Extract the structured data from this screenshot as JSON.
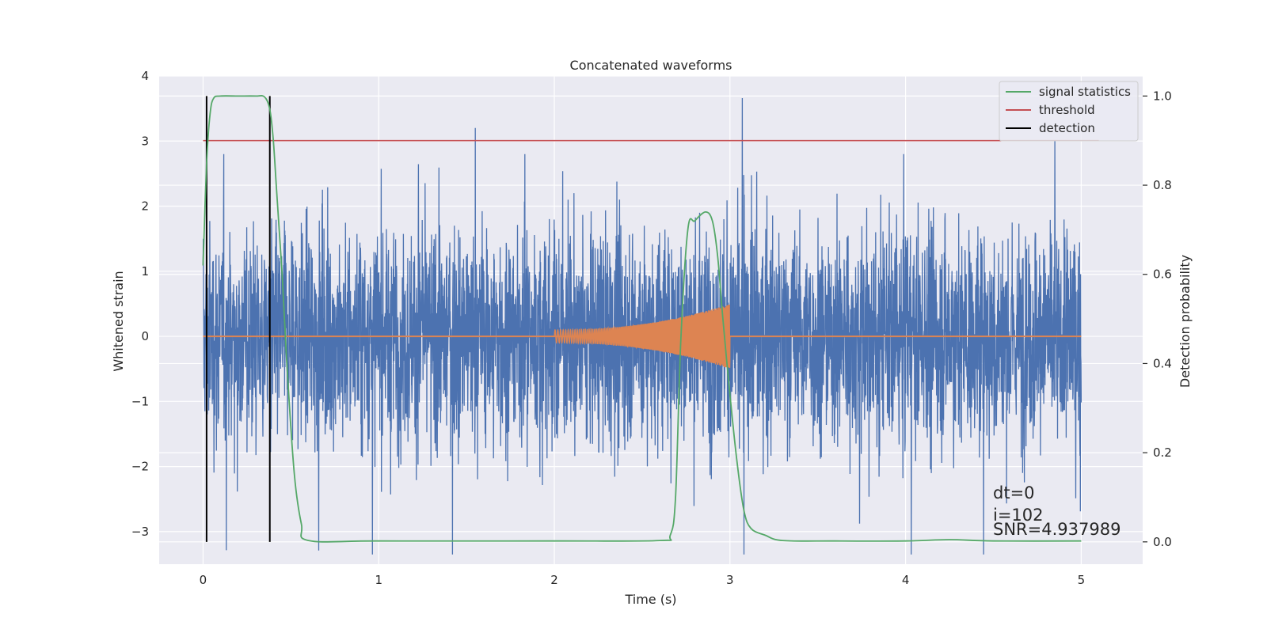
{
  "chart_data": {
    "type": "line",
    "title": "Concatenated waveforms",
    "xlabel": "Time (s)",
    "ylabel": "Whitened strain",
    "ylabel_right": "Detection probability",
    "xlim": [
      -0.25,
      5.35
    ],
    "ylim": [
      -3.5,
      4.0
    ],
    "ylim_right": [
      -0.05,
      1.045
    ],
    "x_ticks": [
      "0",
      "1",
      "2",
      "3",
      "4",
      "5"
    ],
    "y_ticks": [
      "4",
      "3",
      "2",
      "1",
      "0",
      "−1",
      "−2",
      "−3"
    ],
    "y_ticks_right": [
      "1.0",
      "0.8",
      "0.6",
      "0.4",
      "0.2",
      "0.0"
    ],
    "grid": true,
    "legend_position": "top-right",
    "legend": [
      "signal statistics",
      "threshold",
      "detection"
    ],
    "colors": {
      "background": "#eaeaf2",
      "grid": "#ffffff",
      "strain": "#4c72b0",
      "injection": "#dd8452",
      "statistic": "#55a868",
      "threshold": "#c44e52",
      "detection": "#000000"
    },
    "series": [
      {
        "name": "signal statistics",
        "axis": "right",
        "x": [
          0.0,
          0.02,
          0.04,
          0.06,
          0.1,
          0.2,
          0.3,
          0.35,
          0.38,
          0.4,
          0.42,
          0.45,
          0.48,
          0.52,
          0.56,
          0.6,
          1.0,
          2.0,
          2.6,
          2.66,
          2.69,
          2.72,
          2.76,
          2.8,
          2.86,
          2.9,
          2.93,
          2.96,
          3.0,
          3.04,
          3.08,
          3.12,
          3.2,
          3.3,
          3.6,
          4.0,
          4.25,
          4.5,
          5.0
        ],
        "y": [
          0.62,
          0.85,
          0.96,
          0.995,
          1.0,
          1.0,
          1.0,
          0.998,
          0.97,
          0.9,
          0.78,
          0.6,
          0.38,
          0.15,
          0.04,
          0.003,
          0.002,
          0.002,
          0.003,
          0.015,
          0.1,
          0.45,
          0.7,
          0.72,
          0.74,
          0.72,
          0.64,
          0.5,
          0.33,
          0.18,
          0.07,
          0.03,
          0.015,
          0.003,
          0.002,
          0.002,
          0.005,
          0.002,
          0.002
        ]
      },
      {
        "name": "threshold",
        "axis": "right",
        "x": [
          0.0,
          5.1
        ],
        "y": [
          0.9,
          0.9
        ]
      },
      {
        "name": "detection",
        "axis": "right",
        "x": [
          0.02,
          0.38
        ],
        "y_range": [
          0.0,
          1.0
        ]
      }
    ],
    "strain_envelope": {
      "x_range": [
        0.0,
        5.0
      ],
      "typical_amplitude": 1.5,
      "spikes": [
        {
          "x": 1.42,
          "y": -3.35
        },
        {
          "x": 1.55,
          "y": 3.2
        },
        {
          "x": 3.07,
          "y": 3.66
        },
        {
          "x": 3.08,
          "y": -3.35
        },
        {
          "x": 4.85,
          "y": 3.0
        }
      ]
    },
    "injection_chirp": {
      "x_range": [
        2.0,
        3.0
      ],
      "amplitude_start": 0.1,
      "amplitude_end": 0.5
    },
    "annotations": [
      "dt=0",
      "i=102",
      "SNR=4.937989"
    ]
  }
}
